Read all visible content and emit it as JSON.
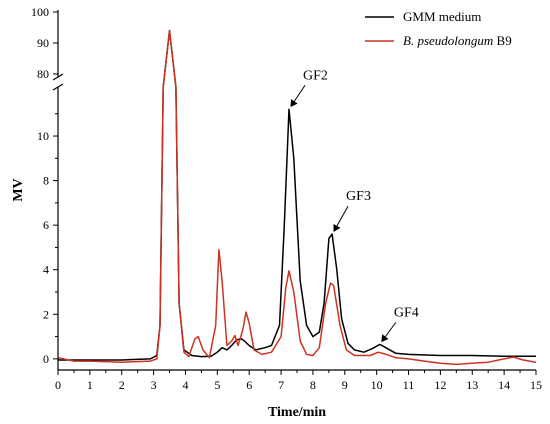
{
  "chart_data": {
    "type": "line",
    "xlabel": "Time/min",
    "ylabel": "MV",
    "xlim": [
      0,
      15
    ],
    "ylim_lower": [
      -0.5,
      12.2
    ],
    "ylim_upper": [
      80,
      100
    ],
    "axis_break": true,
    "x_ticks": [
      "0",
      "1",
      "2",
      "3",
      "4",
      "5",
      "6",
      "7",
      "8",
      "9",
      "10",
      "11",
      "12",
      "13",
      "14",
      "15"
    ],
    "y_ticks_lower": [
      "0",
      "2",
      "4",
      "6",
      "8",
      "10"
    ],
    "y_ticks_upper": [
      "80",
      "90",
      "100"
    ],
    "legend_placement": "top-right",
    "grid": false,
    "series": [
      {
        "name": "GMM medium",
        "color": "#000000",
        "points": [
          [
            0,
            -0.05
          ],
          [
            1,
            -0.05
          ],
          [
            2,
            -0.05
          ],
          [
            2.9,
            0
          ],
          [
            3.1,
            0.15
          ],
          [
            3.2,
            1.5
          ],
          [
            3.3,
            12.5
          ],
          [
            3.5,
            94
          ],
          [
            3.7,
            12.5
          ],
          [
            3.8,
            2.5
          ],
          [
            3.95,
            0.4
          ],
          [
            4.2,
            0.15
          ],
          [
            4.5,
            0.1
          ],
          [
            4.8,
            0.12
          ],
          [
            5.0,
            0.3
          ],
          [
            5.15,
            0.5
          ],
          [
            5.3,
            0.4
          ],
          [
            5.45,
            0.6
          ],
          [
            5.6,
            0.85
          ],
          [
            5.75,
            0.9
          ],
          [
            5.85,
            0.8
          ],
          [
            6.0,
            0.6
          ],
          [
            6.2,
            0.4
          ],
          [
            6.5,
            0.5
          ],
          [
            6.7,
            0.6
          ],
          [
            6.95,
            1.5
          ],
          [
            7.1,
            6
          ],
          [
            7.25,
            11.2
          ],
          [
            7.4,
            9
          ],
          [
            7.6,
            3.5
          ],
          [
            7.8,
            1.5
          ],
          [
            8.0,
            1.0
          ],
          [
            8.2,
            1.2
          ],
          [
            8.35,
            2.5
          ],
          [
            8.5,
            5.4
          ],
          [
            8.6,
            5.6
          ],
          [
            8.75,
            4
          ],
          [
            8.9,
            1.8
          ],
          [
            9.1,
            0.7
          ],
          [
            9.3,
            0.4
          ],
          [
            9.6,
            0.3
          ],
          [
            9.85,
            0.45
          ],
          [
            10.1,
            0.65
          ],
          [
            10.35,
            0.45
          ],
          [
            10.6,
            0.25
          ],
          [
            11,
            0.2
          ],
          [
            12,
            0.15
          ],
          [
            13,
            0.15
          ],
          [
            14,
            0.12
          ],
          [
            15,
            0.12
          ]
        ]
      },
      {
        "name": "B. pseudolongum B9",
        "color": "#cc3322",
        "points": [
          [
            0,
            0.05
          ],
          [
            0.5,
            -0.1
          ],
          [
            1,
            -0.1
          ],
          [
            2,
            -0.15
          ],
          [
            2.9,
            -0.1
          ],
          [
            3.1,
            0
          ],
          [
            3.2,
            1.5
          ],
          [
            3.3,
            12.5
          ],
          [
            3.5,
            94
          ],
          [
            3.7,
            12.5
          ],
          [
            3.8,
            2.5
          ],
          [
            3.95,
            0.3
          ],
          [
            4.1,
            0.1
          ],
          [
            4.3,
            0.9
          ],
          [
            4.4,
            1.0
          ],
          [
            4.55,
            0.4
          ],
          [
            4.75,
            0.05
          ],
          [
            4.95,
            1.5
          ],
          [
            5.05,
            4.9
          ],
          [
            5.15,
            3.5
          ],
          [
            5.3,
            0.6
          ],
          [
            5.45,
            0.8
          ],
          [
            5.55,
            1.05
          ],
          [
            5.65,
            0.6
          ],
          [
            5.8,
            1.3
          ],
          [
            5.9,
            2.1
          ],
          [
            6.0,
            1.6
          ],
          [
            6.15,
            0.4
          ],
          [
            6.4,
            0.2
          ],
          [
            6.7,
            0.3
          ],
          [
            7.0,
            1.0
          ],
          [
            7.15,
            3.2
          ],
          [
            7.25,
            3.95
          ],
          [
            7.4,
            3.0
          ],
          [
            7.6,
            0.8
          ],
          [
            7.8,
            0.2
          ],
          [
            8.0,
            0.15
          ],
          [
            8.2,
            0.5
          ],
          [
            8.4,
            2.5
          ],
          [
            8.55,
            3.4
          ],
          [
            8.65,
            3.3
          ],
          [
            8.85,
            1.5
          ],
          [
            9.05,
            0.4
          ],
          [
            9.3,
            0.15
          ],
          [
            9.8,
            0.15
          ],
          [
            10.05,
            0.3
          ],
          [
            10.3,
            0.2
          ],
          [
            10.6,
            0.05
          ],
          [
            11,
            0
          ],
          [
            11.5,
            -0.1
          ],
          [
            12,
            -0.2
          ],
          [
            12.5,
            -0.25
          ],
          [
            13,
            -0.2
          ],
          [
            13.5,
            -0.15
          ],
          [
            14,
            0
          ],
          [
            14.3,
            0.08
          ],
          [
            14.6,
            -0.05
          ],
          [
            15,
            -0.15
          ]
        ]
      }
    ],
    "annotations": [
      {
        "label": "GF2",
        "x": 7.25,
        "y": 11.2
      },
      {
        "label": "GF3",
        "x": 8.6,
        "y": 5.6
      },
      {
        "label": "GF4",
        "x": 10.1,
        "y": 0.65
      }
    ]
  }
}
